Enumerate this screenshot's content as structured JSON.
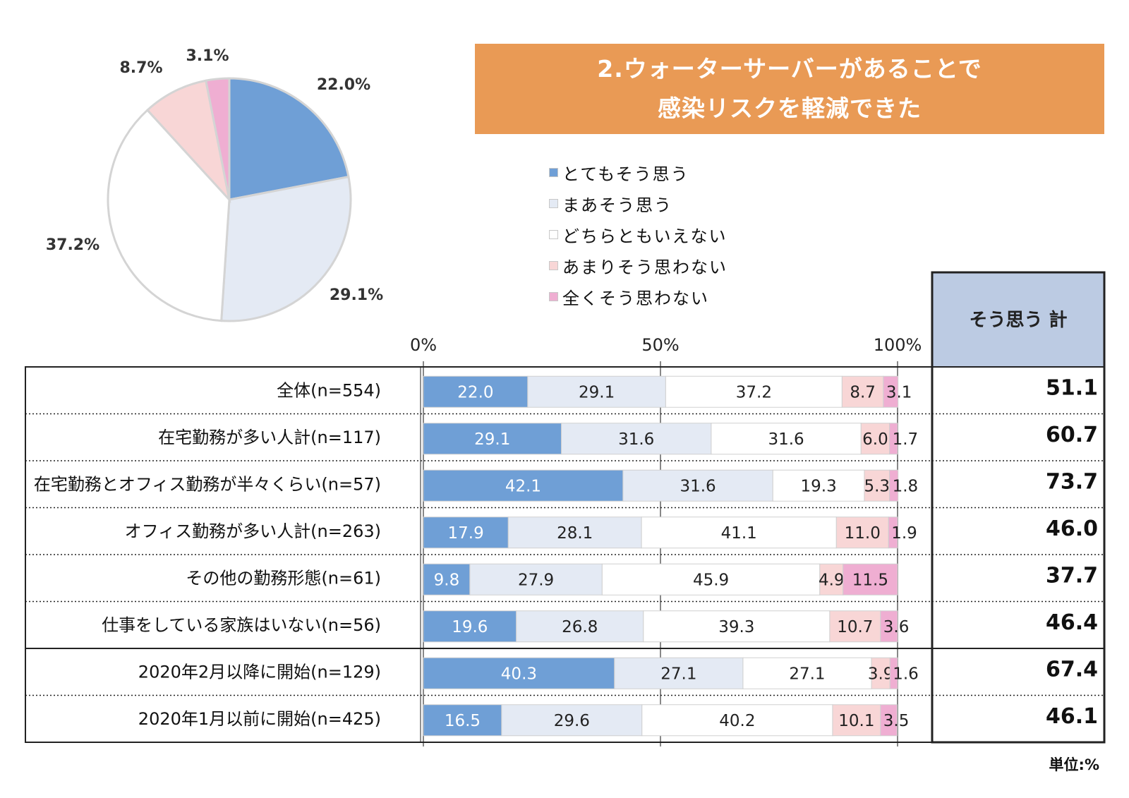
{
  "title": {
    "line1": "2.ウォーターサーバーがあることで",
    "line2": "感染リスクを軽減できた"
  },
  "unit": "単位:%",
  "legend": [
    {
      "label": "とてもそう思う",
      "color": "#6f9fd6"
    },
    {
      "label": "まあそう思う",
      "color": "#e4eaf4"
    },
    {
      "label": "どちらともいえない",
      "color": "#ffffff"
    },
    {
      "label": "あまりそう思わない",
      "color": "#f8d6d6"
    },
    {
      "label": "全くそう思わない",
      "color": "#efaed2"
    }
  ],
  "chart_data": [
    {
      "type": "pie",
      "slices": [
        {
          "label": "とてもそう思う",
          "value": 22.0,
          "display": "22.0%"
        },
        {
          "label": "まあそう思う",
          "value": 29.1,
          "display": "29.1%"
        },
        {
          "label": "どちらともいえない",
          "value": 37.2,
          "display": "37.2%"
        },
        {
          "label": "あまりそう思わない",
          "value": 8.7,
          "display": "8.7%"
        },
        {
          "label": "全くそう思わない",
          "value": 3.1,
          "display": "3.1%"
        }
      ]
    },
    {
      "type": "bar",
      "orientation": "horizontal",
      "stacked": true,
      "xlim": [
        0,
        100
      ],
      "x_ticks": [
        "0%",
        "50%",
        "100%"
      ],
      "categories": [
        "全体(n=554)",
        "在宅勤務が多い人計(n=117)",
        "在宅勤務とオフィス勤務が半々くらい(n=57)",
        "オフィス勤務が多い人計(n=263)",
        "その他の勤務形態(n=61)",
        "仕事をしている家族はいない(n=56)",
        "2020年2月以降に開始(n=129)",
        "2020年1月以前に開始(n=425)"
      ],
      "series": [
        {
          "name": "とてもそう思う",
          "values": [
            22.0,
            29.1,
            42.1,
            17.9,
            9.8,
            19.6,
            40.3,
            16.5
          ],
          "labels": [
            "22.0",
            "29.1",
            "42.1",
            "17.9",
            "9.8",
            "19.6",
            "40.3",
            "16.5"
          ]
        },
        {
          "name": "まあそう思う",
          "values": [
            29.1,
            31.6,
            31.6,
            28.1,
            27.9,
            26.8,
            27.1,
            29.6
          ],
          "labels": [
            "29.1",
            "31.6",
            "31.6",
            "28.1",
            "27.9",
            "26.8",
            "27.1",
            "29.6"
          ]
        },
        {
          "name": "どちらともいえない",
          "values": [
            37.2,
            31.6,
            19.3,
            41.1,
            45.9,
            39.3,
            27.1,
            40.2
          ],
          "labels": [
            "37.2",
            "31.6",
            "19.3",
            "41.1",
            "45.9",
            "39.3",
            "27.1",
            "40.2"
          ]
        },
        {
          "name": "あまりそう思わない",
          "values": [
            8.7,
            6.0,
            5.3,
            11.0,
            4.9,
            10.7,
            3.9,
            10.1
          ],
          "labels": [
            "8.7",
            "6.0",
            "5.3",
            "11.0",
            "4.9",
            "10.7",
            "3.9",
            "10.1"
          ]
        },
        {
          "name": "全くそう思わない",
          "values": [
            3.1,
            1.7,
            1.8,
            1.9,
            11.5,
            3.6,
            1.6,
            3.5
          ],
          "labels": [
            "3.1",
            "1.7",
            "1.8",
            "1.9",
            "11.5",
            "3.6",
            "1.6",
            "3.5"
          ]
        }
      ]
    },
    {
      "type": "table",
      "header": "そう思う 計",
      "values": [
        "51.1",
        "60.7",
        "73.7",
        "46.0",
        "37.7",
        "46.4",
        "67.4",
        "46.1"
      ]
    }
  ]
}
